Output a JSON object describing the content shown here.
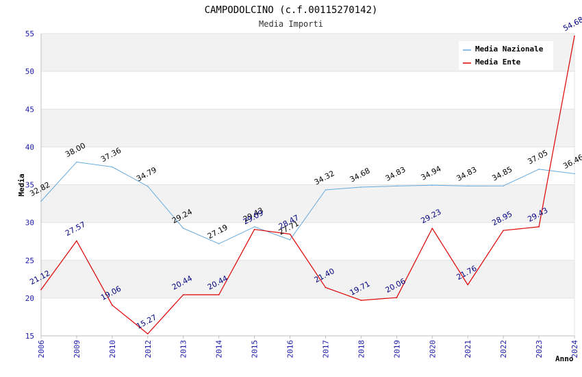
{
  "chart_data": {
    "type": "line",
    "title": "CAMPODOLCINO (c.f.00115270142)",
    "subtitle": "Media Importi",
    "xlabel": "Anno",
    "ylabel": "Media",
    "categories": [
      "2006",
      "2009",
      "2010",
      "2012",
      "2013",
      "2014",
      "2015",
      "2016",
      "2017",
      "2018",
      "2019",
      "2020",
      "2021",
      "2022",
      "2023",
      "2024"
    ],
    "ylim": [
      15,
      55
    ],
    "yticks": [
      15,
      20,
      25,
      30,
      35,
      40,
      45,
      50,
      55
    ],
    "legend_position": "top-right",
    "series": [
      {
        "name": "Media Nazionale",
        "color": "#66aadd",
        "label_color": "#000000",
        "values": [
          32.82,
          38.0,
          37.36,
          34.79,
          29.24,
          27.19,
          29.43,
          27.71,
          34.32,
          34.68,
          34.83,
          34.94,
          34.83,
          34.85,
          37.05,
          36.46
        ],
        "labels": [
          "32.82",
          "38.00",
          "37.36",
          "34.79",
          "29.24",
          "27.19",
          "29.43",
          "27.71",
          "34.32",
          "34.68",
          "34.83",
          "34.94",
          "34.83",
          "34.85",
          "37.05",
          "36.46"
        ]
      },
      {
        "name": "Media Ente",
        "color": "#dd0000",
        "label_color": "#000080",
        "values": [
          21.12,
          27.57,
          19.06,
          15.27,
          20.44,
          20.44,
          29.09,
          28.47,
          21.4,
          19.71,
          20.06,
          29.23,
          21.76,
          28.95,
          29.43,
          54.68
        ],
        "labels": [
          "21.12",
          "27.57",
          "19.06",
          "15.27",
          "20.44",
          "20.44",
          "29.09",
          "28.47",
          "21.40",
          "19.71",
          "20.06",
          "29.23",
          "21.76",
          "28.95",
          "29.43",
          "54.68"
        ]
      }
    ]
  }
}
